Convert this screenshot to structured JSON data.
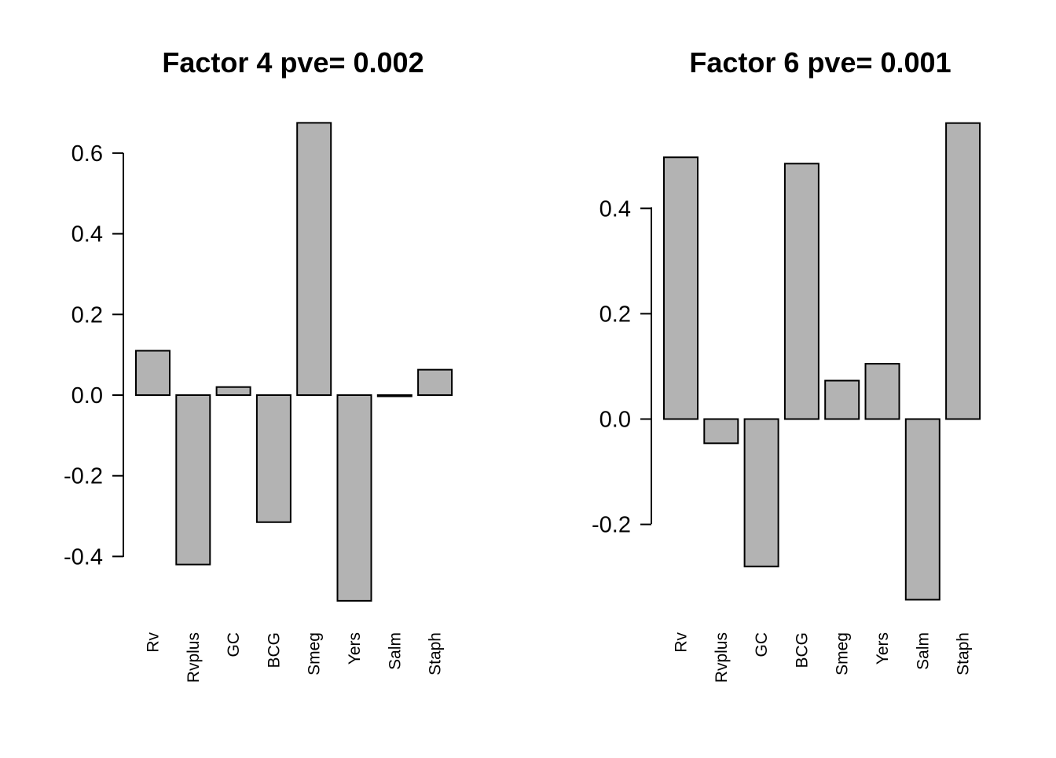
{
  "chart_data": [
    {
      "type": "bar",
      "title": "Factor 4 pve= 0.002",
      "categories": [
        "Rv",
        "Rvplus",
        "GC",
        "BCG",
        "Smeg",
        "Yers",
        "Salm",
        "Staph"
      ],
      "values": [
        0.11,
        -0.42,
        0.02,
        -0.315,
        0.675,
        -0.51,
        -0.003,
        0.063
      ],
      "yticks": [
        "-0.4",
        "-0.2",
        "0.0",
        "0.2",
        "0.4",
        "0.6"
      ],
      "ylim": [
        -0.51,
        0.675
      ],
      "xlabel": "",
      "ylabel": "",
      "bar_color": "#b3b3b3",
      "grid": false,
      "legend": false
    },
    {
      "type": "bar",
      "title": "Factor 6 pve= 0.001",
      "categories": [
        "Rv",
        "Rvplus",
        "GC",
        "BCG",
        "Smeg",
        "Yers",
        "Salm",
        "Staph"
      ],
      "values": [
        0.497,
        -0.046,
        -0.28,
        0.485,
        0.073,
        0.105,
        -0.343,
        0.562
      ],
      "yticks": [
        "-0.2",
        "0.0",
        "0.2",
        "0.4"
      ],
      "ylim": [
        -0.343,
        0.562
      ],
      "xlabel": "",
      "ylabel": "",
      "bar_color": "#b3b3b3",
      "grid": false,
      "legend": false
    }
  ]
}
